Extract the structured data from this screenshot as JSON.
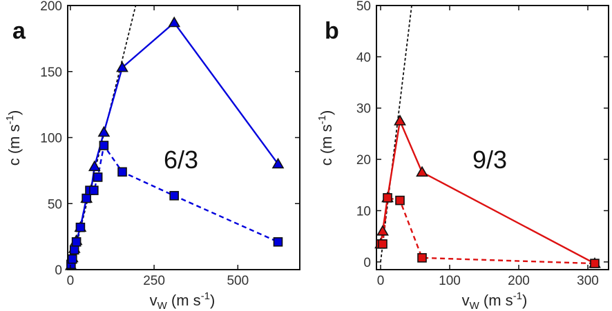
{
  "chart_data": [
    {
      "type": "line",
      "panel_label": "a",
      "annotation": "6/3",
      "xlabel": "v",
      "xlabel_sub": "W",
      "xlabel_units_pre": " (m s",
      "xlabel_units_sup": "-1",
      "xlabel_units_post": ")",
      "ylabel_pre": "c (m s",
      "ylabel_sup": "-1",
      "ylabel_post": ")",
      "xlim": [
        -8,
        685
      ],
      "ylim": [
        0,
        200
      ],
      "xticks": [
        0,
        250,
        500
      ],
      "yticks": [
        0,
        50,
        100,
        150,
        200
      ],
      "color": "#0000dd",
      "series": [
        {
          "name": "triangles",
          "style": "solid",
          "marker": "triangle",
          "x": [
            2,
            6,
            12,
            18,
            30,
            48,
            62,
            72,
            100,
            155,
            310,
            620
          ],
          "y": [
            3,
            9,
            16,
            22,
            32,
            54,
            60,
            78,
            104,
            153,
            187,
            80
          ]
        },
        {
          "name": "squares",
          "style": "dashed",
          "marker": "square",
          "x": [
            2,
            6,
            12,
            18,
            30,
            48,
            58,
            70,
            82,
            100,
            155,
            310,
            620
          ],
          "y": [
            4,
            8,
            15,
            21,
            32,
            54,
            60,
            60,
            70,
            94,
            74,
            56,
            21
          ]
        }
      ],
      "reference_line": {
        "x": [
          0,
          195
        ],
        "y": [
          0,
          200
        ],
        "style": "dotted"
      }
    },
    {
      "type": "line",
      "panel_label": "b",
      "annotation": "9/3",
      "xlabel": "v",
      "xlabel_sub": "W",
      "xlabel_units_pre": " (m s",
      "xlabel_units_sup": "-1",
      "xlabel_units_post": ")",
      "ylabel_pre": "c (m s",
      "ylabel_sup": "-1",
      "ylabel_post": ")",
      "xlim": [
        -6,
        330
      ],
      "ylim": [
        -1.5,
        50
      ],
      "xticks": [
        0,
        100,
        200,
        300
      ],
      "yticks": [
        0,
        10,
        20,
        30,
        40,
        50
      ],
      "color": "#dd1111",
      "series": [
        {
          "name": "triangles",
          "style": "solid",
          "marker": "triangle",
          "x": [
            0,
            3,
            10,
            28,
            60,
            310
          ],
          "y": [
            3.5,
            6,
            12.5,
            27.5,
            17.5,
            -0.3
          ]
        },
        {
          "name": "squares",
          "style": "dashed",
          "marker": "square",
          "x": [
            0,
            3,
            10,
            28,
            60,
            310
          ],
          "y": [
            3.5,
            3.5,
            12.5,
            12,
            0.8,
            -0.3
          ]
        }
      ],
      "reference_line": {
        "x": [
          0,
          45
        ],
        "y": [
          0,
          50
        ],
        "style": "dotted"
      }
    }
  ]
}
